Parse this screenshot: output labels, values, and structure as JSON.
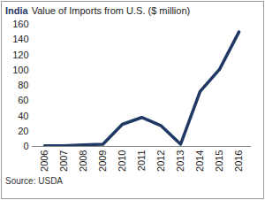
{
  "chart_data": {
    "type": "line",
    "title": "India",
    "subtitle": "Value of Imports from U.S. ($ million)",
    "caption": "Source: USDA",
    "categories": [
      "2006",
      "2007",
      "2008",
      "2009",
      "2010",
      "2011",
      "2012",
      "2013",
      "2014",
      "2015",
      "2016"
    ],
    "values": [
      1,
      1,
      2,
      3,
      29,
      38,
      27,
      3,
      72,
      101,
      150
    ],
    "color": "#1f3864",
    "ylim": [
      0,
      160
    ],
    "yticks": [
      0,
      20,
      40,
      60,
      80,
      100,
      120,
      140,
      160
    ],
    "grid": false
  }
}
